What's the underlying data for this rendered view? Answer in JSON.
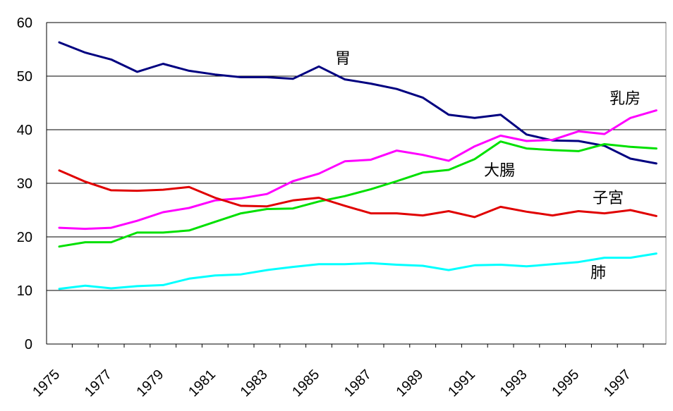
{
  "chart_data": {
    "type": "line",
    "title": "",
    "xlabel": "",
    "ylabel": "",
    "x": [
      1975,
      1976,
      1977,
      1978,
      1979,
      1980,
      1981,
      1982,
      1983,
      1984,
      1985,
      1986,
      1987,
      1988,
      1989,
      1990,
      1991,
      1992,
      1993,
      1994,
      1995,
      1996,
      1997,
      1998
    ],
    "x_tick_labels": [
      "1975",
      "1977",
      "1979",
      "1981",
      "1983",
      "1985",
      "1987",
      "1989",
      "1991",
      "1993",
      "1995",
      "1997"
    ],
    "y_ticks": [
      "0",
      "10",
      "20",
      "30",
      "40",
      "50",
      "60"
    ],
    "ylim": [
      0,
      60
    ],
    "grid": "horizontal",
    "legend": "inline labels",
    "series": [
      {
        "name": "胃",
        "color": "#000080",
        "values": [
          56.3,
          54.4,
          53.1,
          50.8,
          52.3,
          51.0,
          50.3,
          49.8,
          49.8,
          49.5,
          51.8,
          49.4,
          48.6,
          47.6,
          46.0,
          42.8,
          42.2,
          42.8,
          39.1,
          38.0,
          37.9,
          37.0,
          34.6,
          33.7
        ]
      },
      {
        "name": "乳房",
        "color": "#ff00ff",
        "values": [
          21.7,
          21.5,
          21.7,
          23.0,
          24.6,
          25.4,
          26.8,
          27.2,
          28.0,
          30.4,
          31.8,
          34.1,
          34.4,
          36.1,
          35.3,
          34.2,
          36.9,
          38.9,
          37.9,
          38.1,
          39.7,
          39.2,
          42.2,
          43.6
        ]
      },
      {
        "name": "大腸",
        "color": "#00e000",
        "values": [
          18.2,
          19.0,
          19.0,
          20.8,
          20.8,
          21.2,
          22.8,
          24.4,
          25.2,
          25.3,
          26.6,
          27.6,
          28.9,
          30.4,
          32.0,
          32.5,
          34.5,
          37.8,
          36.5,
          36.2,
          36.0,
          37.3,
          36.8,
          36.5
        ]
      },
      {
        "name": "子宮",
        "color": "#e00000",
        "values": [
          32.4,
          30.3,
          28.7,
          28.6,
          28.8,
          29.3,
          27.3,
          25.8,
          25.7,
          26.8,
          27.3,
          25.8,
          24.4,
          24.4,
          24.0,
          24.8,
          23.7,
          25.6,
          24.7,
          24.0,
          24.8,
          24.4,
          25.0,
          23.9
        ]
      },
      {
        "name": "肺",
        "color": "#00ffff",
        "values": [
          10.3,
          10.9,
          10.4,
          10.8,
          11.0,
          12.2,
          12.8,
          13.0,
          13.8,
          14.4,
          14.9,
          14.9,
          15.1,
          14.8,
          14.6,
          13.8,
          14.7,
          14.8,
          14.5,
          14.9,
          15.3,
          16.1,
          16.1,
          16.9
        ]
      }
    ]
  }
}
